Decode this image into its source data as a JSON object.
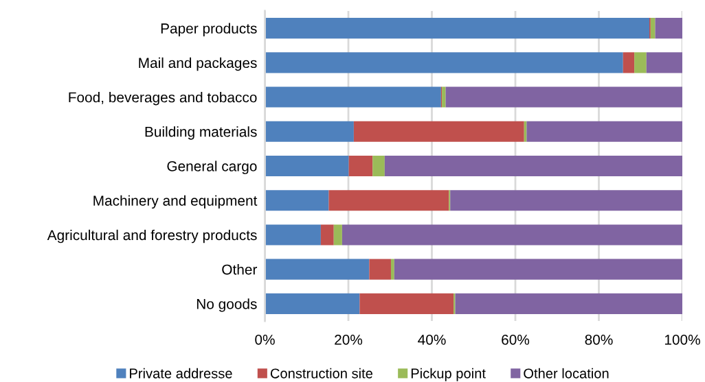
{
  "chart_data": {
    "type": "bar",
    "orientation": "horizontal",
    "stacked": true,
    "categories": [
      "Paper products",
      "Mail and packages",
      "Food, beverages and tobacco",
      "Building materials",
      "General cargo",
      "Machinery and equipment",
      "Agricultural and forestry products",
      "Other",
      "No goods"
    ],
    "series": [
      {
        "name": "Private addresse",
        "color": "#4f81bd",
        "values": [
          92.1,
          85.8,
          42.2,
          21.3,
          20.1,
          15.3,
          13.4,
          25.0,
          22.7
        ]
      },
      {
        "name": "Construction site",
        "color": "#c0504d",
        "values": [
          0.3,
          2.7,
          0.2,
          40.8,
          5.7,
          28.8,
          3.1,
          5.2,
          22.5
        ]
      },
      {
        "name": "Pickup point",
        "color": "#9bbb59",
        "values": [
          1.1,
          2.9,
          0.9,
          0.6,
          2.9,
          0.3,
          2.0,
          0.8,
          0.4
        ]
      },
      {
        "name": "Other location",
        "color": "#8064a2",
        "values": [
          6.5,
          8.6,
          56.7,
          37.3,
          71.3,
          55.6,
          81.5,
          69.0,
          54.4
        ]
      }
    ],
    "xlim": [
      0,
      100
    ],
    "xticks": [
      {
        "value": 0,
        "label": "0%"
      },
      {
        "value": 20,
        "label": "20%"
      },
      {
        "value": 40,
        "label": "40%"
      },
      {
        "value": 60,
        "label": "60%"
      },
      {
        "value": 80,
        "label": "80%"
      },
      {
        "value": 100,
        "label": "100%"
      }
    ],
    "grid": "x",
    "legend": "bottom"
  }
}
